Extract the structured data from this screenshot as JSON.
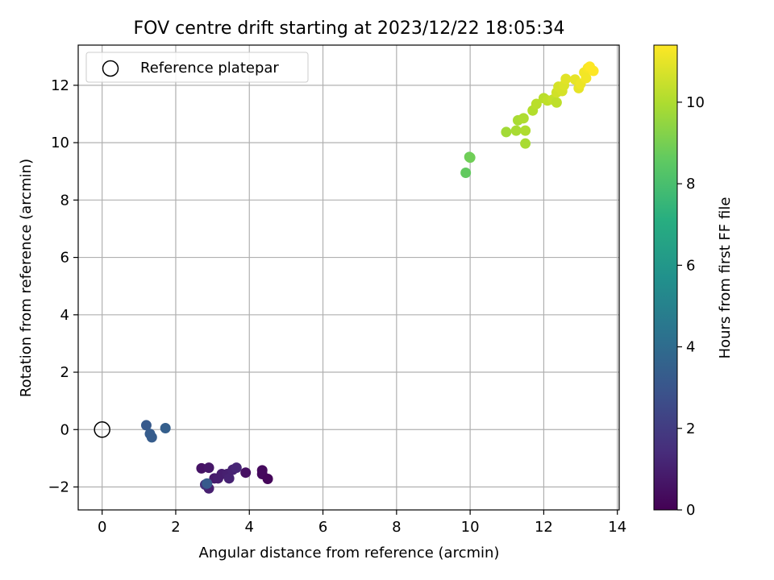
{
  "chart_data": {
    "type": "scatter",
    "title": "FOV centre drift starting at 2023/12/22 18:05:34",
    "xlabel": "Angular distance from reference (arcmin)",
    "ylabel": "Rotation from reference (arcmin)",
    "colorbar_label": "Hours from first FF file",
    "xlim": [
      -0.65,
      14.05
    ],
    "ylim": [
      -2.8,
      13.4
    ],
    "clim": [
      0,
      11.4
    ],
    "colormap": "viridis",
    "grid": true,
    "legend": {
      "location": "upper left",
      "entries": [
        "Reference platepar"
      ]
    },
    "x_ticks": [
      "0",
      "2",
      "4",
      "6",
      "8",
      "10",
      "12",
      "14"
    ],
    "y_ticks": [
      "−2",
      "0",
      "2",
      "4",
      "6",
      "8",
      "10",
      "12"
    ],
    "colorbar_ticks": [
      "0",
      "2",
      "4",
      "6",
      "8",
      "10"
    ],
    "reference_point": {
      "x": 0,
      "y": 0,
      "label": "Reference platepar"
    },
    "points": [
      {
        "x": 2.7,
        "y": -1.35,
        "t": 0.6
      },
      {
        "x": 2.9,
        "y": -1.33,
        "t": 0.7
      },
      {
        "x": 3.05,
        "y": -1.7,
        "t": 0.8
      },
      {
        "x": 3.15,
        "y": -1.7,
        "t": 0.9
      },
      {
        "x": 3.25,
        "y": -1.55,
        "t": 0.9
      },
      {
        "x": 3.4,
        "y": -1.55,
        "t": 1.0
      },
      {
        "x": 3.45,
        "y": -1.7,
        "t": 1.1
      },
      {
        "x": 3.55,
        "y": -1.4,
        "t": 1.1
      },
      {
        "x": 3.65,
        "y": -1.33,
        "t": 1.2
      },
      {
        "x": 3.9,
        "y": -1.5,
        "t": 0.5
      },
      {
        "x": 4.35,
        "y": -1.42,
        "t": 0.3
      },
      {
        "x": 4.35,
        "y": -1.55,
        "t": 0.3
      },
      {
        "x": 4.5,
        "y": -1.72,
        "t": 0.2
      },
      {
        "x": 2.9,
        "y": -2.05,
        "t": 1.0
      },
      {
        "x": 2.8,
        "y": -1.92,
        "t": 1.6
      },
      {
        "x": 2.85,
        "y": -1.88,
        "t": 3.2
      },
      {
        "x": 1.2,
        "y": 0.15,
        "t": 3.2
      },
      {
        "x": 1.3,
        "y": -0.15,
        "t": 3.3
      },
      {
        "x": 1.35,
        "y": -0.27,
        "t": 3.3
      },
      {
        "x": 1.72,
        "y": 0.05,
        "t": 3.4
      },
      {
        "x": 9.88,
        "y": 8.95,
        "t": 8.6
      },
      {
        "x": 9.98,
        "y": 9.5,
        "t": 8.8
      },
      {
        "x": 10.0,
        "y": 9.48,
        "t": 8.9
      },
      {
        "x": 10.98,
        "y": 10.37,
        "t": 9.8
      },
      {
        "x": 11.25,
        "y": 10.42,
        "t": 9.9
      },
      {
        "x": 11.3,
        "y": 10.78,
        "t": 9.9
      },
      {
        "x": 11.45,
        "y": 10.85,
        "t": 10.0
      },
      {
        "x": 11.5,
        "y": 10.42,
        "t": 10.0
      },
      {
        "x": 11.5,
        "y": 9.97,
        "t": 9.9
      },
      {
        "x": 11.7,
        "y": 11.12,
        "t": 10.1
      },
      {
        "x": 11.8,
        "y": 11.35,
        "t": 10.2
      },
      {
        "x": 12.0,
        "y": 11.55,
        "t": 10.2
      },
      {
        "x": 12.1,
        "y": 11.47,
        "t": 10.3
      },
      {
        "x": 12.25,
        "y": 11.5,
        "t": 10.4
      },
      {
        "x": 12.35,
        "y": 11.4,
        "t": 10.3
      },
      {
        "x": 12.35,
        "y": 11.75,
        "t": 10.6
      },
      {
        "x": 12.4,
        "y": 11.95,
        "t": 10.7
      },
      {
        "x": 12.5,
        "y": 11.8,
        "t": 10.7
      },
      {
        "x": 12.55,
        "y": 12.0,
        "t": 10.8
      },
      {
        "x": 12.6,
        "y": 12.22,
        "t": 10.9
      },
      {
        "x": 12.85,
        "y": 12.2,
        "t": 11.0
      },
      {
        "x": 12.95,
        "y": 11.9,
        "t": 11.0
      },
      {
        "x": 13.0,
        "y": 12.05,
        "t": 11.1
      },
      {
        "x": 13.1,
        "y": 12.45,
        "t": 11.2
      },
      {
        "x": 13.15,
        "y": 12.25,
        "t": 11.2
      },
      {
        "x": 13.2,
        "y": 12.6,
        "t": 11.3
      },
      {
        "x": 13.25,
        "y": 12.65,
        "t": 11.4
      },
      {
        "x": 13.35,
        "y": 12.5,
        "t": 11.4
      }
    ]
  }
}
